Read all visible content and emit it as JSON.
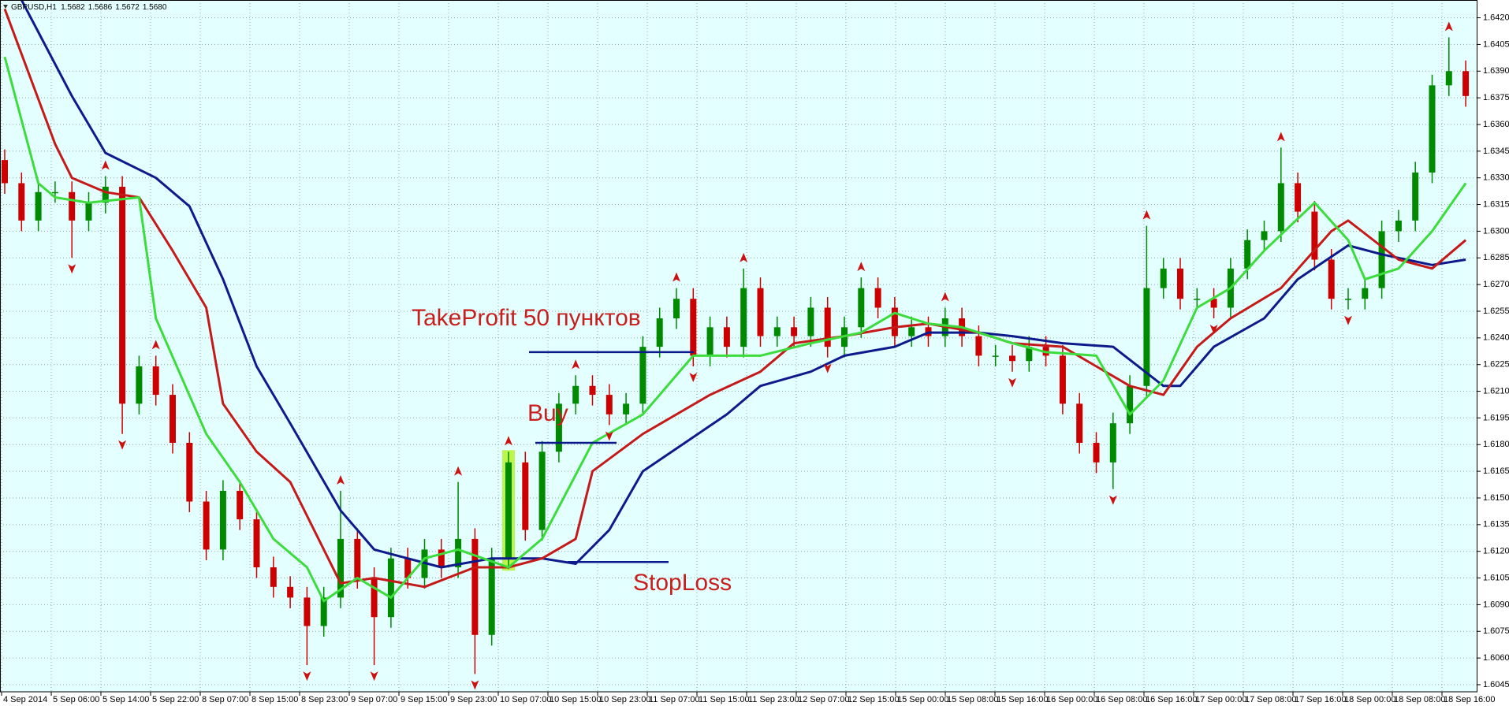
{
  "chart_data": {
    "type": "candlestick",
    "title": "GBPUSD,H1",
    "quote": [
      "1.5682",
      "1.5686",
      "1.5672",
      "1.5680"
    ],
    "background": "#e4ffff",
    "up_color": "#008a00",
    "down_color": "#cc0000",
    "grid": true,
    "grid_color": "#8fa6a6",
    "ylim": [
      1.6041,
      1.643
    ],
    "yticks": [
      1.6045,
      {
        "value": 1.606,
        "label": "1.6060"
      },
      1.6075,
      {
        "value": 1.609,
        "label": "1.6090"
      },
      1.6105,
      {
        "value": 1.612,
        "label": "1.6120"
      },
      1.6135,
      {
        "value": 1.615,
        "label": "1.6150"
      },
      1.6165,
      {
        "value": 1.618,
        "label": "1.6180"
      },
      1.6195,
      {
        "value": 1.621,
        "label": "1.6210"
      },
      1.6225,
      {
        "value": 1.624,
        "label": "1.6240"
      },
      1.6255,
      {
        "value": 1.627,
        "label": "1.6270"
      },
      1.6285,
      {
        "value": 1.63,
        "label": "1.6300"
      },
      1.6315,
      {
        "value": 1.633,
        "label": "1.6330"
      },
      1.6345,
      {
        "value": 1.636,
        "label": "1.6360"
      },
      1.6375,
      {
        "value": 1.639,
        "label": "1.6390"
      },
      1.6405,
      {
        "value": 1.642,
        "label": "1.6420"
      }
    ],
    "x_labels": [
      "4 Sep 2014",
      "5 Sep 06:00",
      "5 Sep 14:00",
      "5 Sep 22:00",
      "8 Sep 07:00",
      "8 Sep 15:00",
      "8 Sep 23:00",
      "9 Sep 07:00",
      "9 Sep 15:00",
      "9 Sep 23:00",
      "10 Sep 07:00",
      "10 Sep 15:00",
      "10 Sep 23:00",
      "11 Sep 07:00",
      "11 Sep 15:00",
      "11 Sep 23:00",
      "12 Sep 07:00",
      "12 Sep 15:00",
      "15 Sep 00:00",
      "15 Sep 08:00",
      "15 Sep 16:00",
      "16 Sep 00:00",
      "16 Sep 08:00",
      "16 Sep 16:00",
      "17 Sep 00:00",
      "17 Sep 08:00",
      "17 Sep 16:00",
      "18 Sep 00:00",
      "18 Sep 08:00",
      "18 Sep 16:00"
    ],
    "open": [
      1.634,
      1.6327,
      1.6306,
      1.6322,
      1.6322,
      1.6306,
      1.6316,
      1.6325,
      1.6203,
      1.6224,
      1.6208,
      1.6181,
      1.6148,
      1.6121,
      1.6154,
      1.6138,
      1.6111,
      1.61,
      1.6094,
      1.6078,
      1.6094,
      1.6127,
      1.6105,
      1.6083,
      1.6116,
      1.6105,
      1.6121,
      1.6111,
      1.6127,
      1.6073,
      1.6116,
      1.617,
      1.6132,
      1.6176,
      1.6203,
      1.6213,
      1.6208,
      1.6197,
      1.6203,
      1.6235,
      1.6251,
      1.6262,
      1.623,
      1.6246,
      1.6235,
      1.6268,
      1.6241,
      1.6246,
      1.6241,
      1.6257,
      1.6235,
      1.6246,
      1.6268,
      1.6257,
      1.6241,
      1.6246,
      1.6241,
      1.6251,
      1.6241,
      1.623,
      1.623,
      1.6227,
      1.6235,
      1.623,
      1.6203,
      1.6181,
      1.617,
      1.6192,
      1.6213,
      1.6268,
      1.6279,
      1.6262,
      1.6262,
      1.6257,
      1.6279,
      1.6295,
      1.63,
      1.6327,
      1.6311,
      1.6284,
      1.6262,
      1.6262,
      1.6268,
      1.63,
      1.6306,
      1.6333,
      1.6382,
      1.639
    ],
    "high": [
      1.6346,
      1.6333,
      1.6328,
      1.6328,
      1.6328,
      1.6322,
      1.6331,
      1.6331,
      1.623,
      1.623,
      1.6214,
      1.6187,
      1.6154,
      1.616,
      1.616,
      1.6144,
      1.6117,
      1.6106,
      1.61,
      1.61,
      1.6154,
      1.6133,
      1.6111,
      1.6122,
      1.6122,
      1.6127,
      1.6127,
      1.6159,
      1.6133,
      1.6122,
      1.6176,
      1.6176,
      1.6182,
      1.6209,
      1.6219,
      1.6219,
      1.6214,
      1.6209,
      1.6241,
      1.6257,
      1.6268,
      1.6268,
      1.6252,
      1.6252,
      1.6279,
      1.6274,
      1.6252,
      1.6252,
      1.6263,
      1.6263,
      1.6252,
      1.6274,
      1.6274,
      1.6263,
      1.6252,
      1.6252,
      1.6257,
      1.6257,
      1.6247,
      1.6236,
      1.6236,
      1.6241,
      1.6241,
      1.6236,
      1.6209,
      1.6187,
      1.6198,
      1.6219,
      1.6303,
      1.6285,
      1.6285,
      1.6268,
      1.6268,
      1.6285,
      1.6301,
      1.6306,
      1.6347,
      1.6333,
      1.6317,
      1.629,
      1.6268,
      1.6274,
      1.6306,
      1.6312,
      1.6339,
      1.6388,
      1.6409,
      1.6396
    ],
    "low": [
      1.6321,
      1.63,
      1.63,
      1.6316,
      1.6285,
      1.63,
      1.631,
      1.6186,
      1.6197,
      1.6202,
      1.6175,
      1.6142,
      1.6115,
      1.6115,
      1.6132,
      1.6105,
      1.6094,
      1.6088,
      1.6056,
      1.6072,
      1.6088,
      1.6099,
      1.6056,
      1.6077,
      1.6099,
      1.6099,
      1.6105,
      1.6105,
      1.6051,
      1.6067,
      1.611,
      1.6126,
      1.6126,
      1.617,
      1.6197,
      1.6202,
      1.6191,
      1.6191,
      1.6197,
      1.6229,
      1.6245,
      1.6224,
      1.6224,
      1.6229,
      1.6229,
      1.6235,
      1.6235,
      1.6235,
      1.6235,
      1.6229,
      1.6229,
      1.624,
      1.6251,
      1.6235,
      1.6235,
      1.6235,
      1.6235,
      1.6235,
      1.6224,
      1.6224,
      1.6221,
      1.6221,
      1.6224,
      1.6197,
      1.6175,
      1.6164,
      1.6155,
      1.6186,
      1.6207,
      1.6262,
      1.6256,
      1.6256,
      1.6251,
      1.6251,
      1.6273,
      1.6289,
      1.6294,
      1.6305,
      1.6278,
      1.6256,
      1.6256,
      1.6256,
      1.6262,
      1.6294,
      1.63,
      1.6327,
      1.6376,
      1.637
    ],
    "close": [
      1.6327,
      1.6306,
      1.6322,
      1.6322,
      1.6306,
      1.6316,
      1.6325,
      1.6203,
      1.6224,
      1.6208,
      1.6181,
      1.6148,
      1.6121,
      1.6154,
      1.6138,
      1.6111,
      1.61,
      1.6094,
      1.6078,
      1.6094,
      1.6127,
      1.6105,
      1.6083,
      1.6116,
      1.6105,
      1.6121,
      1.6111,
      1.6127,
      1.6073,
      1.6116,
      1.617,
      1.6132,
      1.6176,
      1.6203,
      1.6213,
      1.6208,
      1.6197,
      1.6203,
      1.6235,
      1.6251,
      1.6262,
      1.623,
      1.6246,
      1.6235,
      1.6268,
      1.6241,
      1.6246,
      1.6241,
      1.6257,
      1.6235,
      1.6246,
      1.6268,
      1.6257,
      1.6241,
      1.6246,
      1.6241,
      1.6251,
      1.6241,
      1.623,
      1.623,
      1.6227,
      1.6235,
      1.623,
      1.6203,
      1.6181,
      1.617,
      1.6192,
      1.6213,
      1.6268,
      1.6279,
      1.6262,
      1.6262,
      1.6257,
      1.6279,
      1.6295,
      1.63,
      1.6327,
      1.6311,
      1.6284,
      1.6262,
      1.6262,
      1.6268,
      1.63,
      1.6306,
      1.6333,
      1.6382,
      1.639,
      1.6376
    ],
    "series": [
      {
        "color": "#0d1a8c",
        "x": [
          1,
          4,
          6,
          9,
          11,
          13,
          15,
          17,
          20,
          22,
          24,
          26,
          29,
          32,
          34,
          36,
          38,
          43,
          45,
          48,
          50,
          53,
          55,
          58,
          60,
          63,
          66,
          69,
          70,
          72,
          75,
          77,
          80,
          82,
          85,
          87
        ],
        "values": [
          1.643,
          1.6376,
          1.6344,
          1.633,
          1.6314,
          1.6273,
          1.6224,
          1.6192,
          1.6143,
          1.6121,
          1.6116,
          1.6111,
          1.6116,
          1.6116,
          1.6113,
          1.6132,
          1.6165,
          1.6197,
          1.6213,
          1.6221,
          1.623,
          1.6235,
          1.6243,
          1.6243,
          1.6241,
          1.6237,
          1.6235,
          1.6213,
          1.6213,
          1.6235,
          1.6251,
          1.6273,
          1.6292,
          1.6287,
          1.6281,
          1.6284
        ]
      },
      {
        "color": "#c41a1a",
        "x": [
          0,
          3,
          4,
          6,
          8,
          10,
          12,
          13,
          15,
          17,
          19,
          20,
          22,
          25,
          28,
          30,
          32,
          34,
          35,
          38,
          42,
          45,
          47,
          50,
          53,
          55,
          58,
          60,
          63,
          67,
          69,
          71,
          73,
          76,
          79,
          80,
          83,
          85,
          87
        ],
        "values": [
          1.6425,
          1.6349,
          1.633,
          1.6322,
          1.6319,
          1.6289,
          1.6257,
          1.6203,
          1.6176,
          1.6159,
          1.6121,
          1.6102,
          1.6105,
          1.61,
          1.6111,
          1.6111,
          1.6116,
          1.6127,
          1.6165,
          1.6186,
          1.6208,
          1.6221,
          1.6237,
          1.6241,
          1.6246,
          1.6248,
          1.6243,
          1.6237,
          1.6235,
          1.6213,
          1.6208,
          1.6235,
          1.6251,
          1.6268,
          1.63,
          1.6306,
          1.6284,
          1.6279,
          1.6295
        ]
      },
      {
        "color": "#3ddc3d",
        "x": [
          0,
          2,
          3,
          5,
          8,
          9,
          12,
          14,
          16,
          18,
          19,
          21,
          23,
          25,
          27,
          30,
          32,
          35,
          38,
          41,
          45,
          48,
          51,
          53,
          55,
          57,
          60,
          62,
          65,
          67,
          69,
          71,
          73,
          75,
          78,
          80,
          81,
          83,
          85,
          87
        ],
        "values": [
          1.6398,
          1.6327,
          1.6319,
          1.6316,
          1.6319,
          1.6251,
          1.6186,
          1.6159,
          1.6127,
          1.6111,
          1.6092,
          1.6105,
          1.6094,
          1.6116,
          1.6121,
          1.6111,
          1.6127,
          1.6181,
          1.6197,
          1.623,
          1.623,
          1.6237,
          1.6243,
          1.6254,
          1.6248,
          1.6246,
          1.6237,
          1.6232,
          1.623,
          1.6197,
          1.6216,
          1.6257,
          1.6268,
          1.6289,
          1.6316,
          1.6295,
          1.6273,
          1.6279,
          1.63,
          1.6327
        ]
      }
    ],
    "fractal_color": "#cc1111",
    "fractals_up": {
      "x": [
        6,
        9,
        20,
        27,
        30,
        34,
        40,
        44,
        51,
        56,
        68,
        76,
        86
      ],
      "values": [
        1.6331,
        1.623,
        1.6154,
        1.6159,
        1.6176,
        1.6219,
        1.6268,
        1.6279,
        1.6274,
        1.6257,
        1.6303,
        1.6347,
        1.6409
      ]
    },
    "fractals_down": {
      "x": [
        4,
        7,
        18,
        22,
        28,
        36,
        41,
        49,
        60,
        66,
        72,
        80
      ],
      "values": [
        1.6285,
        1.6186,
        1.6056,
        1.6056,
        1.6051,
        1.6191,
        1.6224,
        1.6229,
        1.6221,
        1.6155,
        1.6251,
        1.6256
      ]
    },
    "annotation_color": "#c81e1e",
    "level_color": "#0a1a8c",
    "annotations": [
      {
        "text": "TakeProfit 50 пунктов",
        "value": 1.6232
      },
      {
        "text": "Buy",
        "value": 1.6181
      },
      {
        "text": "StopLoss",
        "value": 1.6114
      }
    ]
  }
}
